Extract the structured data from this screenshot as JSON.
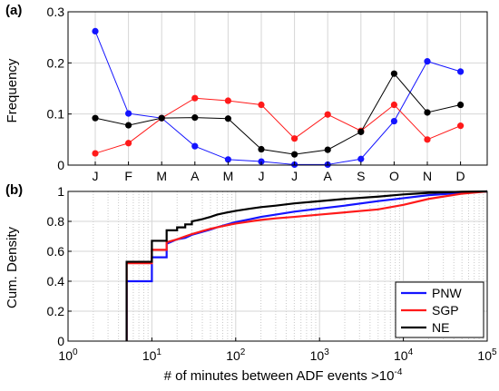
{
  "chart_data": [
    {
      "panel_label": "(a)",
      "type": "line",
      "ylabel": "Frequency",
      "xlabel": "",
      "categories": [
        "J",
        "F",
        "M",
        "A",
        "M",
        "J",
        "J",
        "A",
        "S",
        "O",
        "N",
        "D"
      ],
      "ylim": [
        0,
        0.3
      ],
      "yticks": [
        "0",
        "0.1",
        "0.2",
        "0.3"
      ],
      "grid": true,
      "series": [
        {
          "color": "#1414ff",
          "values": [
            0.262,
            0.101,
            0.092,
            0.037,
            0.011,
            0.007,
            0.001,
            0.001,
            0.012,
            0.086,
            0.203,
            0.183
          ]
        },
        {
          "color": "#ff1a1a",
          "values": [
            0.023,
            0.043,
            0.092,
            0.131,
            0.126,
            0.118,
            0.052,
            0.099,
            0.067,
            0.118,
            0.05,
            0.077
          ]
        },
        {
          "color": "#000000",
          "values": [
            0.092,
            0.078,
            0.092,
            0.093,
            0.091,
            0.031,
            0.021,
            0.03,
            0.065,
            0.179,
            0.103,
            0.118
          ]
        }
      ]
    },
    {
      "panel_label": "(b)",
      "type": "line",
      "ylabel": "Cum. Density",
      "xlabel": "# of minutes between ADF events >10",
      "xlabel_sup": "-4",
      "x_scale": "log",
      "xlim": [
        1,
        100000
      ],
      "ylim": [
        0,
        1
      ],
      "xticks": [
        {
          "base": "10",
          "exp": "0"
        },
        {
          "base": "10",
          "exp": "1"
        },
        {
          "base": "10",
          "exp": "2"
        },
        {
          "base": "10",
          "exp": "3"
        },
        {
          "base": "10",
          "exp": "4"
        },
        {
          "base": "10",
          "exp": "5"
        }
      ],
      "yticks": [
        "0",
        "0.2",
        "0.4",
        "0.6",
        "0.8",
        "1"
      ],
      "grid": true,
      "legend_position": "bottom-right",
      "series": [
        {
          "name": "PNW",
          "color": "#1414ff",
          "x": [
            5,
            5,
            10,
            10,
            15,
            15,
            20,
            25,
            30,
            40,
            50,
            60,
            80,
            100,
            150,
            200,
            300,
            500,
            1000,
            2000,
            5000,
            10000,
            20000,
            50000,
            100000
          ],
          "y": [
            0,
            0.4,
            0.4,
            0.56,
            0.56,
            0.65,
            0.68,
            0.69,
            0.71,
            0.73,
            0.745,
            0.76,
            0.78,
            0.795,
            0.815,
            0.83,
            0.845,
            0.865,
            0.885,
            0.905,
            0.935,
            0.955,
            0.975,
            0.99,
            1.0
          ]
        },
        {
          "name": "SGP",
          "color": "#ff1a1a",
          "x": [
            5,
            5,
            10,
            10,
            15,
            15,
            20,
            25,
            30,
            40,
            50,
            60,
            80,
            100,
            150,
            200,
            300,
            500,
            1000,
            2000,
            5000,
            10000,
            20000,
            50000,
            100000
          ],
          "y": [
            0,
            0.52,
            0.52,
            0.61,
            0.61,
            0.66,
            0.68,
            0.7,
            0.715,
            0.735,
            0.75,
            0.76,
            0.775,
            0.785,
            0.8,
            0.81,
            0.82,
            0.83,
            0.845,
            0.86,
            0.88,
            0.91,
            0.95,
            0.985,
            1.0
          ]
        },
        {
          "name": "NE",
          "color": "#000000",
          "x": [
            5,
            5,
            10,
            10,
            15,
            15,
            20,
            20,
            25,
            25,
            30,
            30,
            40,
            50,
            60,
            80,
            100,
            150,
            200,
            300,
            500,
            1000,
            2000,
            5000,
            10000,
            20000,
            50000,
            100000
          ],
          "y": [
            0,
            0.53,
            0.53,
            0.67,
            0.67,
            0.74,
            0.74,
            0.76,
            0.76,
            0.78,
            0.78,
            0.8,
            0.815,
            0.83,
            0.845,
            0.86,
            0.87,
            0.885,
            0.895,
            0.905,
            0.92,
            0.935,
            0.95,
            0.965,
            0.98,
            0.99,
            0.998,
            1.0
          ]
        }
      ]
    }
  ]
}
